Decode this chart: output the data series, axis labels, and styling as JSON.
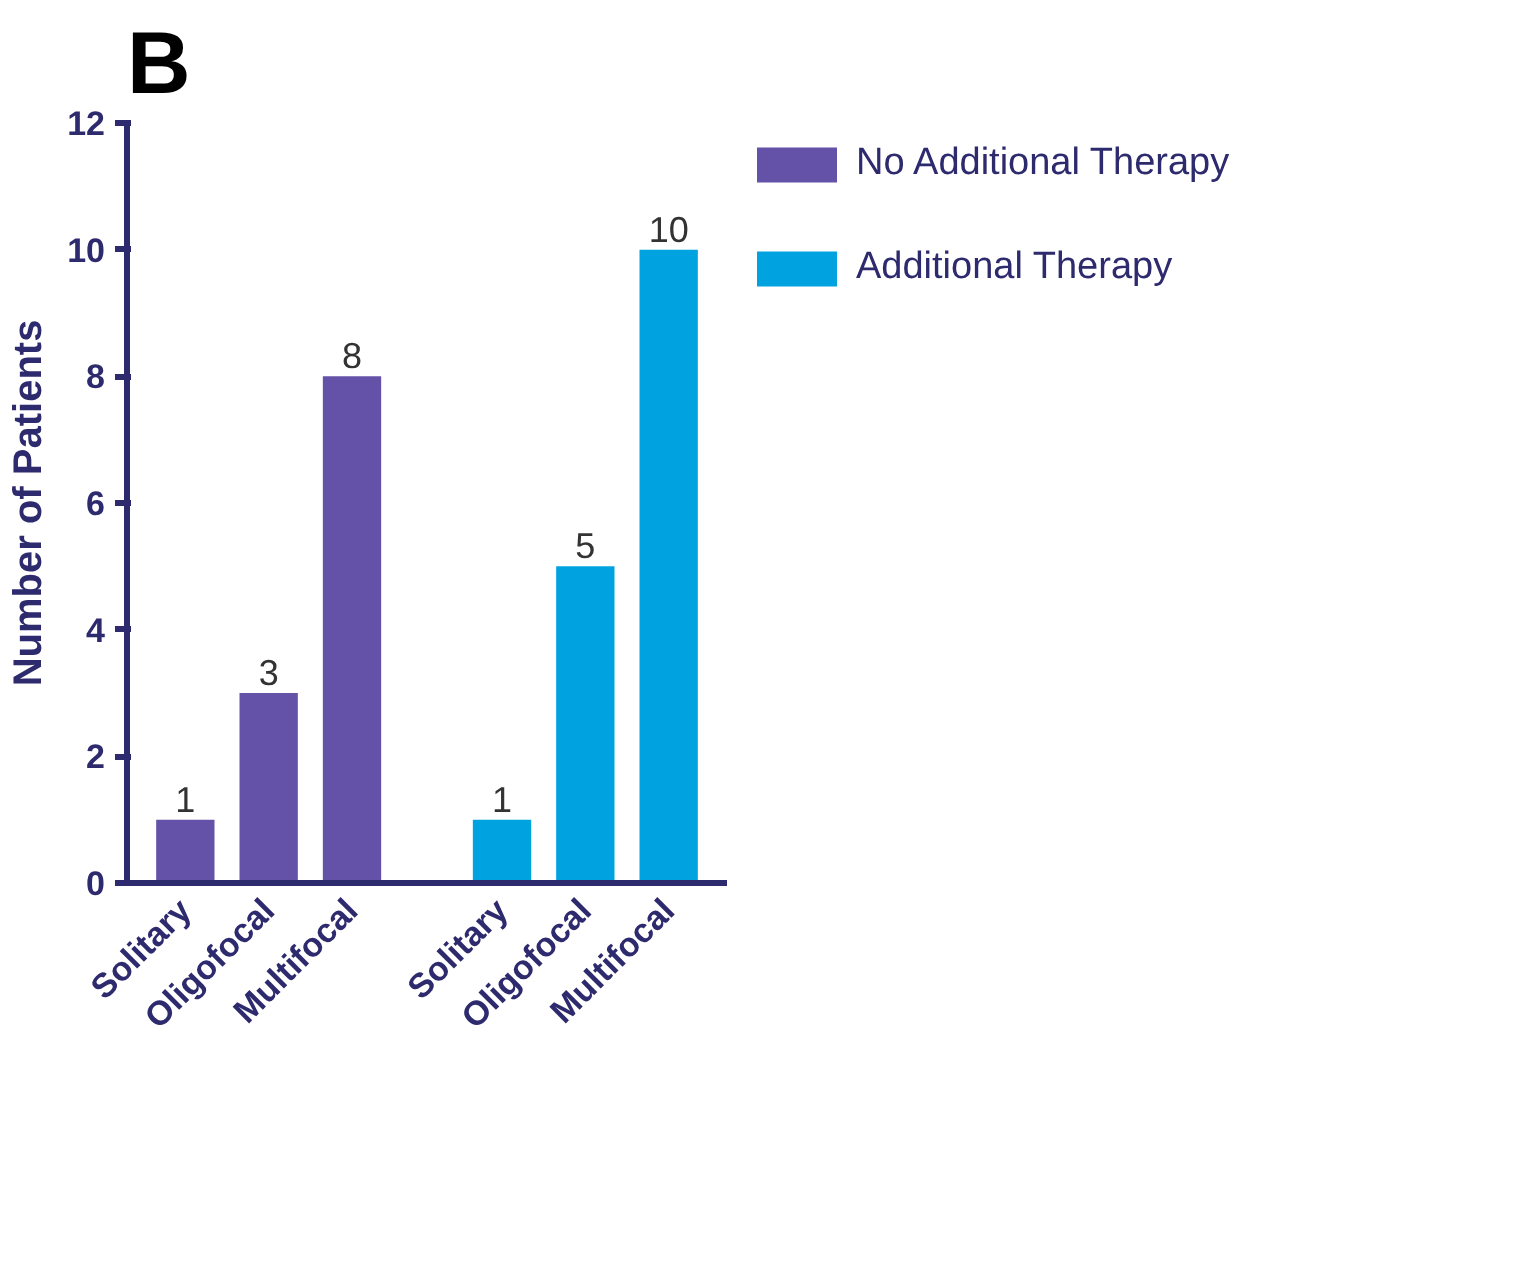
{
  "chart_data": {
    "type": "bar",
    "title": "B",
    "ylabel": "Number of Patients",
    "categories": [
      "Solitary",
      "Oligofocal",
      "Multifocal",
      "Solitary",
      "Oligofocal",
      "Multifocal"
    ],
    "series": [
      {
        "name": "No Additional Therapy",
        "color": "#6452a8",
        "values": [
          1,
          3,
          8,
          null,
          null,
          null
        ]
      },
      {
        "name": "Additional Therapy",
        "color": "#00a3e0",
        "values": [
          null,
          null,
          null,
          1,
          5,
          10
        ]
      }
    ],
    "ylim": [
      0,
      12
    ],
    "yticks": [
      0,
      2,
      4,
      6,
      8,
      10,
      12
    ],
    "grid": false,
    "legend": "top right",
    "data_labels": true
  }
}
